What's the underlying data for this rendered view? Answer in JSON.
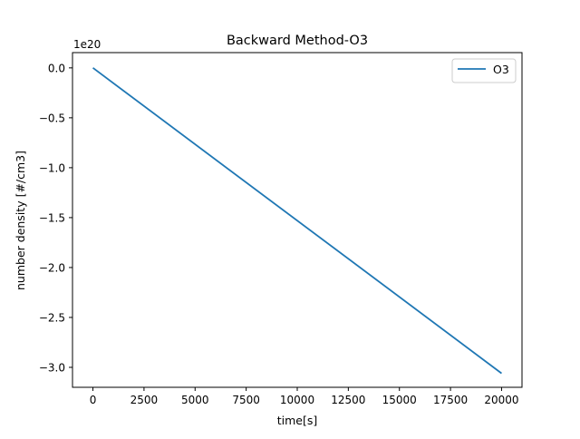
{
  "chart_data": {
    "type": "line",
    "title": "Backward Method-O3",
    "xlabel": "time[s]",
    "ylabel": "number density [#/cm3]",
    "y_offset_label": "1e20",
    "xlim": [
      -1000,
      21000
    ],
    "ylim": [
      -3.2,
      0.153
    ],
    "x_ticks": [
      0,
      2500,
      5000,
      7500,
      10000,
      12500,
      15000,
      17500,
      20000
    ],
    "y_ticks": [
      0.0,
      -0.5,
      -1.0,
      -1.5,
      -2.0,
      -2.5,
      -3.0
    ],
    "x_tick_labels": [
      "0",
      "2500",
      "5000",
      "7500",
      "10000",
      "12500",
      "15000",
      "17500",
      "20000"
    ],
    "y_tick_labels": [
      "0.0",
      "−0.5",
      "−1.0",
      "−1.5",
      "−2.0",
      "−2.5",
      "−3.0"
    ],
    "grid": false,
    "legend_position": "top-right",
    "series": [
      {
        "name": "O3",
        "color": "#1f77b4",
        "x": [
          0,
          20000
        ],
        "y": [
          0.0,
          -3.06
        ]
      }
    ]
  }
}
